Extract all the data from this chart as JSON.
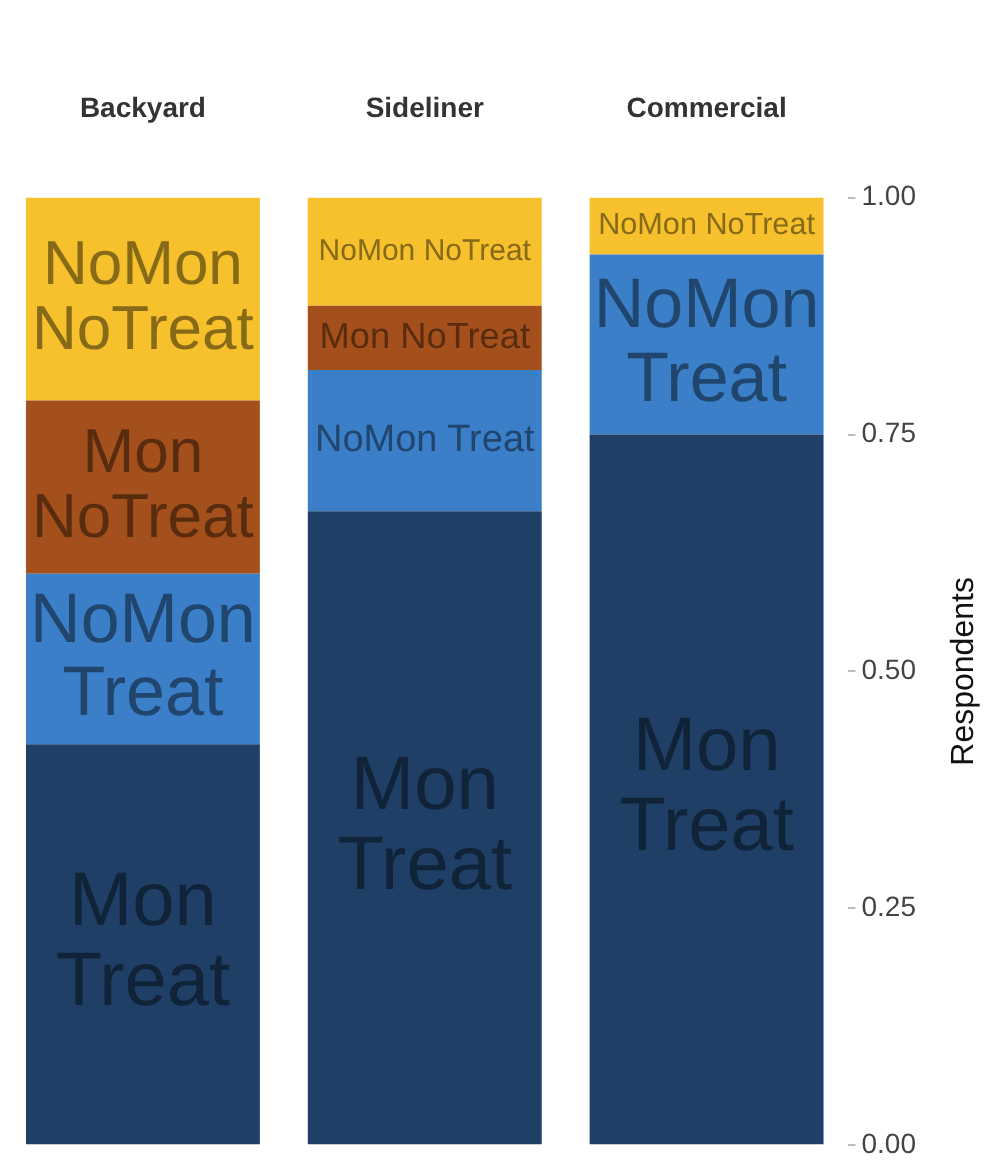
{
  "chart_data": {
    "type": "bar",
    "stacked": true,
    "categories": [
      "Backyard",
      "Sideliner",
      "Commercial"
    ],
    "series": [
      {
        "name": "Mon Treat",
        "color": "#1f3f66",
        "values": [
          0.423,
          0.669,
          0.75
        ]
      },
      {
        "name": "NoMon Treat",
        "color": "#3a7fc8",
        "values": [
          0.18,
          0.149,
          0.19
        ]
      },
      {
        "name": "Mon NoTreat",
        "color": "#a4501c",
        "values": [
          0.183,
          0.068,
          0
        ]
      },
      {
        "name": "NoMon NoTreat",
        "color": "#f6c12c",
        "values": [
          0.214,
          0.114,
          0.06
        ]
      }
    ],
    "ylabel": "Respondents",
    "ylim": [
      0,
      1
    ],
    "yticks": [
      {
        "value": 0,
        "label": "0.00"
      },
      {
        "value": 0.25,
        "label": "0.25"
      },
      {
        "value": 0.5,
        "label": "0.50"
      },
      {
        "value": 0.75,
        "label": "0.75"
      },
      {
        "value": 1,
        "label": "1.00"
      }
    ],
    "grid": false,
    "legend": false
  }
}
